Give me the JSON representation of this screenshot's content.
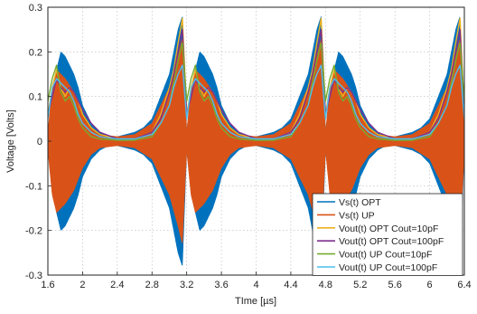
{
  "chart_data": {
    "type": "line",
    "title": "",
    "xlabel": "TIme [µs]",
    "ylabel": "Voltage [Volts]",
    "xlim": [
      1.6,
      6.4
    ],
    "ylim": [
      -0.3,
      0.3
    ],
    "grid": true,
    "legend_position": "bottom-right",
    "xticks": [
      "1.6",
      "2",
      "2.4",
      "2.8",
      "3.2",
      "3.6",
      "4",
      "4.4",
      "4.8",
      "5.2",
      "5.6",
      "6",
      "6.4"
    ],
    "yticks": [
      "-0.3",
      "-0.2",
      "-0.1",
      "0",
      "0.1",
      "0.2",
      "0.3"
    ],
    "period_us": 1.6,
    "series": [
      {
        "name": "Vs(t) OPT",
        "color": "#0072BD",
        "kind": "oscillating_envelope",
        "envelope": [
          [
            0.0,
            0.02
          ],
          [
            0.05,
            0.1
          ],
          [
            0.1,
            0.16
          ],
          [
            0.15,
            0.2
          ],
          [
            0.2,
            0.19
          ],
          [
            0.25,
            0.17
          ],
          [
            0.3,
            0.15
          ],
          [
            0.35,
            0.12
          ],
          [
            0.4,
            0.08
          ],
          [
            0.45,
            0.06
          ],
          [
            0.5,
            0.04
          ],
          [
            0.55,
            0.03
          ],
          [
            0.6,
            0.02
          ],
          [
            0.7,
            0.01
          ],
          [
            0.8,
            0.01
          ],
          [
            0.9,
            0.015
          ],
          [
            1.0,
            0.02
          ],
          [
            1.1,
            0.03
          ],
          [
            1.2,
            0.05
          ],
          [
            1.3,
            0.1
          ],
          [
            1.4,
            0.15
          ],
          [
            1.5,
            0.25
          ],
          [
            1.55,
            0.28
          ],
          [
            1.6,
            0.02
          ]
        ]
      },
      {
        "name": "Vs(t) UP",
        "color": "#D95319",
        "kind": "oscillating_envelope",
        "envelope": [
          [
            0.0,
            0.02
          ],
          [
            0.05,
            0.12
          ],
          [
            0.1,
            0.16
          ],
          [
            0.15,
            0.15
          ],
          [
            0.2,
            0.14
          ],
          [
            0.3,
            0.11
          ],
          [
            0.4,
            0.06
          ],
          [
            0.5,
            0.03
          ],
          [
            0.6,
            0.015
          ],
          [
            0.8,
            0.01
          ],
          [
            1.0,
            0.015
          ],
          [
            1.2,
            0.04
          ],
          [
            1.3,
            0.08
          ],
          [
            1.4,
            0.12
          ],
          [
            1.5,
            0.19
          ],
          [
            1.55,
            0.23
          ],
          [
            1.6,
            0.02
          ]
        ]
      },
      {
        "name": "Vout(t) OPT Cout=10pF",
        "color": "#EDB120",
        "kind": "line",
        "points": [
          [
            0.0,
            0.06
          ],
          [
            0.05,
            0.12
          ],
          [
            0.1,
            0.16
          ],
          [
            0.15,
            0.12
          ],
          [
            0.2,
            0.1
          ],
          [
            0.25,
            0.12
          ],
          [
            0.3,
            0.11
          ],
          [
            0.35,
            0.09
          ],
          [
            0.4,
            0.06
          ],
          [
            0.5,
            0.03
          ],
          [
            0.6,
            0.015
          ],
          [
            0.8,
            0.005
          ],
          [
            1.0,
            0.005
          ],
          [
            1.2,
            0.02
          ],
          [
            1.3,
            0.06
          ],
          [
            1.4,
            0.12
          ],
          [
            1.45,
            0.16
          ],
          [
            1.5,
            0.22
          ],
          [
            1.55,
            0.275
          ],
          [
            1.6,
            0.06
          ]
        ]
      },
      {
        "name": "Vout(t) OPT Cout=100pF",
        "color": "#7E2F8E",
        "kind": "line",
        "points": [
          [
            0.0,
            0.06
          ],
          [
            0.05,
            0.1
          ],
          [
            0.1,
            0.14
          ],
          [
            0.15,
            0.12
          ],
          [
            0.2,
            0.11
          ],
          [
            0.25,
            0.12
          ],
          [
            0.3,
            0.11
          ],
          [
            0.35,
            0.09
          ],
          [
            0.4,
            0.07
          ],
          [
            0.5,
            0.04
          ],
          [
            0.6,
            0.02
          ],
          [
            0.8,
            0.005
          ],
          [
            1.0,
            0.005
          ],
          [
            1.2,
            0.02
          ],
          [
            1.3,
            0.05
          ],
          [
            1.4,
            0.11
          ],
          [
            1.45,
            0.15
          ],
          [
            1.5,
            0.2
          ],
          [
            1.55,
            0.25
          ],
          [
            1.6,
            0.06
          ]
        ]
      },
      {
        "name": "Vout(t) UP Cout=10pF",
        "color": "#77AC30",
        "kind": "line",
        "points": [
          [
            0.0,
            0.09
          ],
          [
            0.05,
            0.14
          ],
          [
            0.1,
            0.17
          ],
          [
            0.15,
            0.11
          ],
          [
            0.2,
            0.09
          ],
          [
            0.25,
            0.1
          ],
          [
            0.3,
            0.08
          ],
          [
            0.35,
            0.05
          ],
          [
            0.4,
            0.03
          ],
          [
            0.5,
            0.01
          ],
          [
            0.6,
            0.005
          ],
          [
            0.8,
            0.002
          ],
          [
            1.0,
            0.002
          ],
          [
            1.2,
            0.01
          ],
          [
            1.3,
            0.04
          ],
          [
            1.4,
            0.08
          ],
          [
            1.45,
            0.13
          ],
          [
            1.5,
            0.18
          ],
          [
            1.55,
            0.22
          ],
          [
            1.6,
            0.09
          ]
        ]
      },
      {
        "name": "Vout(t) UP Cout=100pF",
        "color": "#4DBEEE",
        "kind": "line",
        "points": [
          [
            0.0,
            0.05
          ],
          [
            0.05,
            0.12
          ],
          [
            0.1,
            0.14
          ],
          [
            0.15,
            0.13
          ],
          [
            0.2,
            0.12
          ],
          [
            0.25,
            0.11
          ],
          [
            0.3,
            0.09
          ],
          [
            0.35,
            0.06
          ],
          [
            0.4,
            0.04
          ],
          [
            0.5,
            0.02
          ],
          [
            0.6,
            0.01
          ],
          [
            0.8,
            0.005
          ],
          [
            1.0,
            0.005
          ],
          [
            1.2,
            0.015
          ],
          [
            1.3,
            0.04
          ],
          [
            1.4,
            0.08
          ],
          [
            1.45,
            0.12
          ],
          [
            1.5,
            0.15
          ],
          [
            1.55,
            0.17
          ],
          [
            1.6,
            0.05
          ]
        ]
      }
    ]
  }
}
